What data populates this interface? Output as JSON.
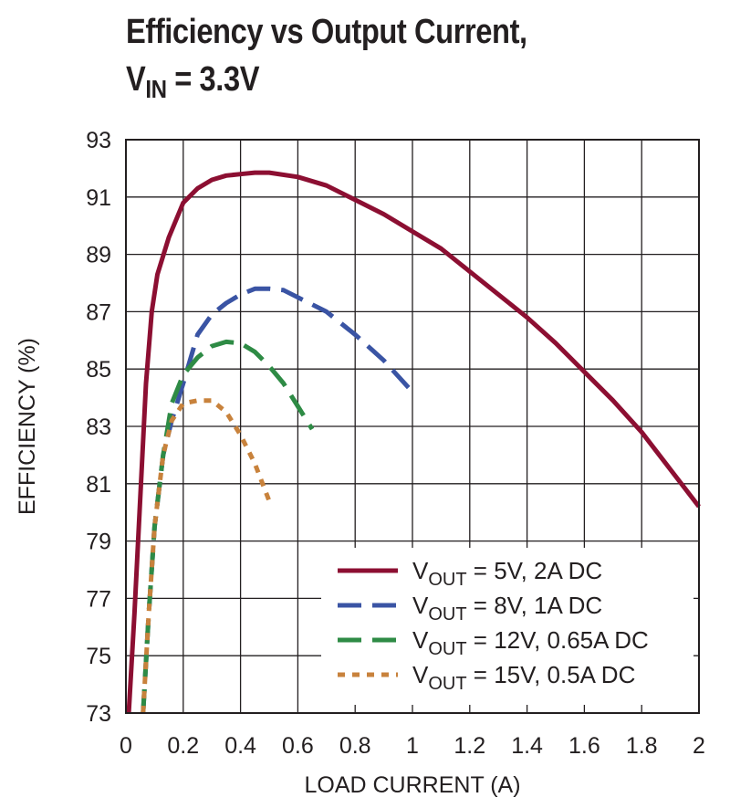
{
  "title": {
    "line1": "Efficiency vs Output Current,",
    "line2_main": "V",
    "line2_sub": "IN",
    "line2_rest": " = 3.3V"
  },
  "chart_data": {
    "type": "line",
    "xlabel": "LOAD CURRENT (A)",
    "ylabel": "EFFICIENCY (%)",
    "xlim": [
      0,
      2
    ],
    "ylim": [
      73,
      93
    ],
    "xticks": [
      "0",
      "0.2",
      "0.4",
      "0.6",
      "0.8",
      "1",
      "1.2",
      "1.4",
      "1.6",
      "1.8",
      "2"
    ],
    "yticks": [
      "73",
      "75",
      "77",
      "79",
      "81",
      "83",
      "85",
      "87",
      "89",
      "91",
      "93"
    ],
    "grid": true,
    "legend_position": "bottom-right",
    "series": [
      {
        "name_main": "V",
        "name_sub": "OUT",
        "name_rest": " = 5V, 2A DC",
        "color": "#8c0f32",
        "style": "solid",
        "points": [
          [
            0.01,
            73.0
          ],
          [
            0.03,
            76.5
          ],
          [
            0.05,
            80.5
          ],
          [
            0.07,
            84.5
          ],
          [
            0.09,
            87.0
          ],
          [
            0.11,
            88.3
          ],
          [
            0.15,
            89.6
          ],
          [
            0.2,
            90.8
          ],
          [
            0.25,
            91.3
          ],
          [
            0.3,
            91.6
          ],
          [
            0.35,
            91.75
          ],
          [
            0.4,
            91.8
          ],
          [
            0.45,
            91.85
          ],
          [
            0.5,
            91.85
          ],
          [
            0.6,
            91.7
          ],
          [
            0.7,
            91.4
          ],
          [
            0.8,
            90.9
          ],
          [
            0.9,
            90.4
          ],
          [
            1.0,
            89.8
          ],
          [
            1.1,
            89.2
          ],
          [
            1.2,
            88.4
          ],
          [
            1.3,
            87.6
          ],
          [
            1.4,
            86.8
          ],
          [
            1.5,
            85.9
          ],
          [
            1.6,
            84.9
          ],
          [
            1.7,
            83.9
          ],
          [
            1.8,
            82.8
          ],
          [
            1.9,
            81.5
          ],
          [
            2.0,
            80.2
          ]
        ]
      },
      {
        "name_main": "V",
        "name_sub": "OUT",
        "name_rest": " = 8V, 1A DC",
        "color": "#3a54a4",
        "style": "dash",
        "points": [
          [
            0.06,
            73.0
          ],
          [
            0.08,
            76.5
          ],
          [
            0.1,
            79.5
          ],
          [
            0.13,
            82.0
          ],
          [
            0.16,
            83.2
          ],
          [
            0.2,
            84.5
          ],
          [
            0.25,
            86.2
          ],
          [
            0.3,
            86.9
          ],
          [
            0.35,
            87.3
          ],
          [
            0.4,
            87.6
          ],
          [
            0.45,
            87.8
          ],
          [
            0.5,
            87.8
          ],
          [
            0.55,
            87.75
          ],
          [
            0.6,
            87.5
          ],
          [
            0.7,
            87.0
          ],
          [
            0.8,
            86.2
          ],
          [
            0.9,
            85.3
          ],
          [
            1.0,
            84.2
          ]
        ]
      },
      {
        "name_main": "V",
        "name_sub": "OUT",
        "name_rest": " = 12V, 0.65A DC",
        "color": "#2e8b45",
        "style": "dash",
        "points": [
          [
            0.06,
            73.0
          ],
          [
            0.08,
            76.5
          ],
          [
            0.1,
            79.5
          ],
          [
            0.13,
            82.0
          ],
          [
            0.16,
            83.8
          ],
          [
            0.2,
            84.8
          ],
          [
            0.25,
            85.4
          ],
          [
            0.3,
            85.8
          ],
          [
            0.35,
            85.95
          ],
          [
            0.4,
            85.9
          ],
          [
            0.45,
            85.6
          ],
          [
            0.5,
            85.1
          ],
          [
            0.55,
            84.5
          ],
          [
            0.6,
            83.7
          ],
          [
            0.65,
            82.9
          ]
        ]
      },
      {
        "name_main": "V",
        "name_sub": "OUT",
        "name_rest": " = 15V, 0.5A DC",
        "color": "#c8823c",
        "style": "dot",
        "points": [
          [
            0.06,
            73.0
          ],
          [
            0.08,
            76.5
          ],
          [
            0.1,
            79.5
          ],
          [
            0.13,
            82.0
          ],
          [
            0.16,
            83.2
          ],
          [
            0.2,
            83.8
          ],
          [
            0.25,
            83.9
          ],
          [
            0.3,
            83.9
          ],
          [
            0.35,
            83.5
          ],
          [
            0.4,
            82.7
          ],
          [
            0.45,
            81.7
          ],
          [
            0.5,
            80.4
          ]
        ]
      }
    ]
  }
}
